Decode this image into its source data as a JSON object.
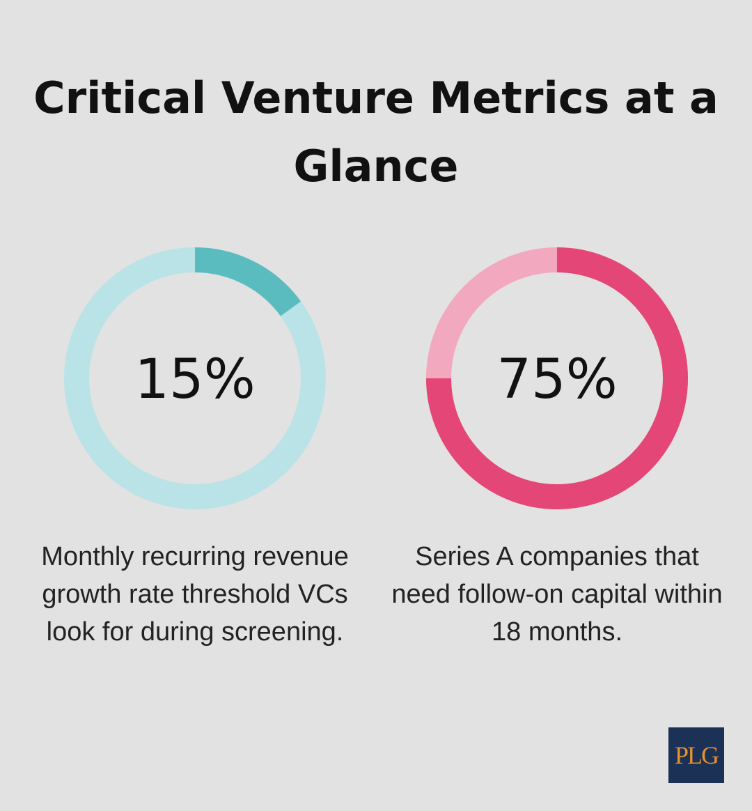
{
  "title": "Critical Venture Metrics at a Glance",
  "chart_data": [
    {
      "type": "donut",
      "values": [
        15
      ],
      "value_labels": [
        "15%"
      ],
      "color": "#5bbcc0",
      "track_color": "#b9e3e6",
      "description": "Monthly recurring revenue growth rate threshold VCs look for during screening."
    },
    {
      "type": "donut",
      "values": [
        75
      ],
      "value_labels": [
        "75%"
      ],
      "color": "#e44677",
      "track_color": "#f2a9bf",
      "description": "Series A companies that need follow-on capital within 18 months."
    }
  ],
  "logo": "PLG"
}
